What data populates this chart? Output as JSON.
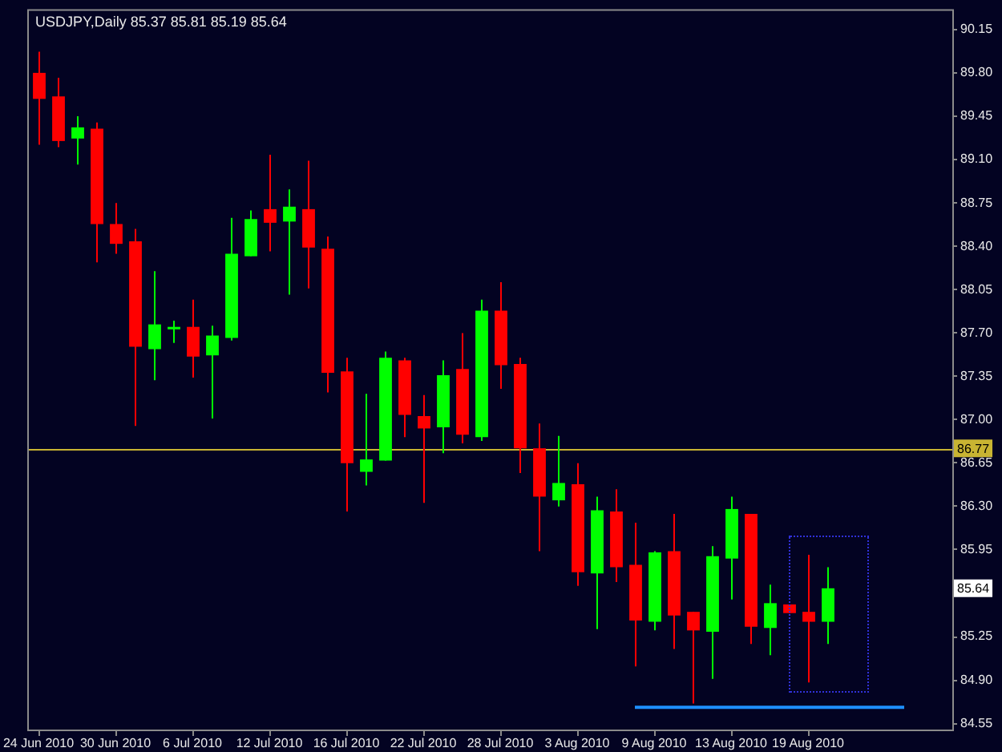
{
  "chart_data": {
    "type": "candlestick",
    "title": "USDJPY,Daily 85.37 85.81 85.19 85.64",
    "categories": [
      "24 Jun 2010",
      null,
      null,
      null,
      "30 Jun 2010",
      null,
      null,
      null,
      "6 Jul 2010",
      null,
      null,
      null,
      "12 Jul 2010",
      null,
      null,
      null,
      "16 Jul 2010",
      null,
      null,
      null,
      "22 Jul 2010",
      null,
      null,
      null,
      "28 Jul 2010",
      null,
      null,
      null,
      "3 Aug 2010",
      null,
      null,
      null,
      "9 Aug 2010",
      null,
      null,
      null,
      "13 Aug 2010",
      null,
      null,
      null,
      "19 Aug 2010",
      null,
      null,
      null,
      null,
      null,
      null,
      null
    ],
    "ohlc": [
      [
        89.8,
        89.97,
        89.22,
        89.59
      ],
      [
        89.61,
        89.76,
        89.2,
        89.25
      ],
      [
        89.27,
        89.45,
        89.06,
        89.36
      ],
      [
        89.35,
        89.4,
        88.27,
        88.58
      ],
      [
        88.58,
        88.75,
        88.34,
        88.42
      ],
      [
        88.44,
        88.54,
        86.95,
        87.59
      ],
      [
        87.57,
        88.2,
        87.32,
        87.77
      ],
      [
        87.73,
        87.8,
        87.62,
        87.75
      ],
      [
        87.75,
        87.97,
        87.34,
        87.51
      ],
      [
        87.52,
        87.76,
        87.01,
        87.68
      ],
      [
        87.66,
        88.63,
        87.64,
        88.34
      ],
      [
        88.32,
        88.69,
        88.32,
        88.62
      ],
      [
        88.7,
        89.14,
        88.36,
        88.59
      ],
      [
        88.6,
        88.86,
        88.01,
        88.72
      ],
      [
        88.7,
        89.09,
        88.06,
        88.39
      ],
      [
        88.38,
        88.48,
        87.22,
        87.38
      ],
      [
        87.39,
        87.5,
        86.26,
        86.65
      ],
      [
        86.58,
        87.21,
        86.47,
        86.68
      ],
      [
        86.67,
        87.55,
        86.67,
        87.5
      ],
      [
        87.48,
        87.5,
        86.86,
        87.04
      ],
      [
        87.03,
        87.2,
        86.33,
        86.93
      ],
      [
        86.94,
        87.48,
        86.73,
        87.36
      ],
      [
        87.41,
        87.7,
        86.81,
        86.88
      ],
      [
        86.86,
        87.97,
        86.83,
        87.88
      ],
      [
        87.88,
        88.11,
        87.25,
        87.44
      ],
      [
        87.45,
        87.5,
        86.57,
        86.77
      ],
      [
        86.77,
        86.97,
        85.94,
        86.38
      ],
      [
        86.35,
        86.87,
        86.3,
        86.49
      ],
      [
        86.48,
        86.65,
        85.66,
        85.77
      ],
      [
        85.76,
        86.38,
        85.31,
        86.27
      ],
      [
        86.26,
        86.44,
        85.69,
        85.81
      ],
      [
        85.83,
        86.17,
        85.01,
        85.38
      ],
      [
        85.37,
        85.94,
        85.3,
        85.93
      ],
      [
        85.94,
        86.24,
        85.15,
        85.42
      ],
      [
        85.45,
        85.45,
        84.71,
        85.3
      ],
      [
        85.29,
        85.98,
        84.91,
        85.9
      ],
      [
        85.88,
        86.38,
        85.55,
        86.28
      ],
      [
        86.24,
        86.24,
        85.19,
        85.33
      ],
      [
        85.32,
        85.67,
        85.1,
        85.52
      ],
      [
        85.51,
        85.51,
        85.44,
        85.44
      ],
      [
        85.45,
        85.91,
        84.88,
        85.37
      ],
      [
        85.37,
        85.81,
        85.19,
        85.64
      ],
      null,
      null,
      null,
      null,
      null,
      null
    ],
    "colors": [
      "#ff0000",
      "#ff0000",
      "#00ff00",
      "#ff0000",
      "#ff0000",
      "#ff0000",
      "#00ff00",
      "#00ff00",
      "#ff0000",
      "#00ff00",
      "#00ff00",
      "#00ff00",
      "#ff0000",
      "#00ff00",
      "#ff0000",
      "#ff0000",
      "#ff0000",
      "#00ff00",
      "#00ff00",
      "#ff0000",
      "#ff0000",
      "#00ff00",
      "#ff0000",
      "#00ff00",
      "#ff0000",
      "#ff0000",
      "#ff0000",
      "#00ff00",
      "#ff0000",
      "#00ff00",
      "#ff0000",
      "#ff0000",
      "#00ff00",
      "#ff0000",
      "#ff0000",
      "#00ff00",
      "#00ff00",
      "#ff0000",
      "#00ff00",
      "#ff0000",
      "#ff0000",
      "#00ff00",
      null,
      null,
      null,
      null,
      null,
      null
    ],
    "series": [
      {
        "type": "line",
        "color": "#1e90ff",
        "values": [
          null,
          null,
          null,
          null,
          null,
          null,
          null,
          null,
          null,
          null,
          null,
          null,
          null,
          null,
          null,
          null,
          null,
          null,
          null,
          null,
          null,
          null,
          null,
          null,
          null,
          null,
          null,
          null,
          null,
          null,
          null,
          84.68,
          84.68,
          84.68,
          84.68,
          84.68,
          84.68,
          84.68,
          84.68,
          84.68,
          84.68,
          84.68,
          84.68,
          84.68,
          84.68,
          84.68,
          null,
          null
        ]
      }
    ],
    "ylim": [
      84.5,
      90.3
    ],
    "yticks": [
      90.15,
      {
        "value": 89.8,
        "label": "89.80"
      },
      89.45,
      {
        "value": 89.1,
        "label": "89.10"
      },
      88.75,
      {
        "value": 88.4,
        "label": "88.40"
      },
      88.05,
      {
        "value": 87.7,
        "label": "87.70"
      },
      87.35,
      {
        "value": 87,
        "label": "87.00"
      },
      86.65,
      {
        "value": 86.3,
        "label": "86.30"
      },
      85.95,
      85.25,
      {
        "value": 84.9,
        "label": "84.90"
      },
      84.55
    ],
    "ref_lines": [
      {
        "axis": "y",
        "value": 86.77,
        "label": "86.77",
        "color": "#c8b432"
      }
    ],
    "annotations": [
      {
        "text": "85.64",
        "y": 85.64
      }
    ]
  }
}
